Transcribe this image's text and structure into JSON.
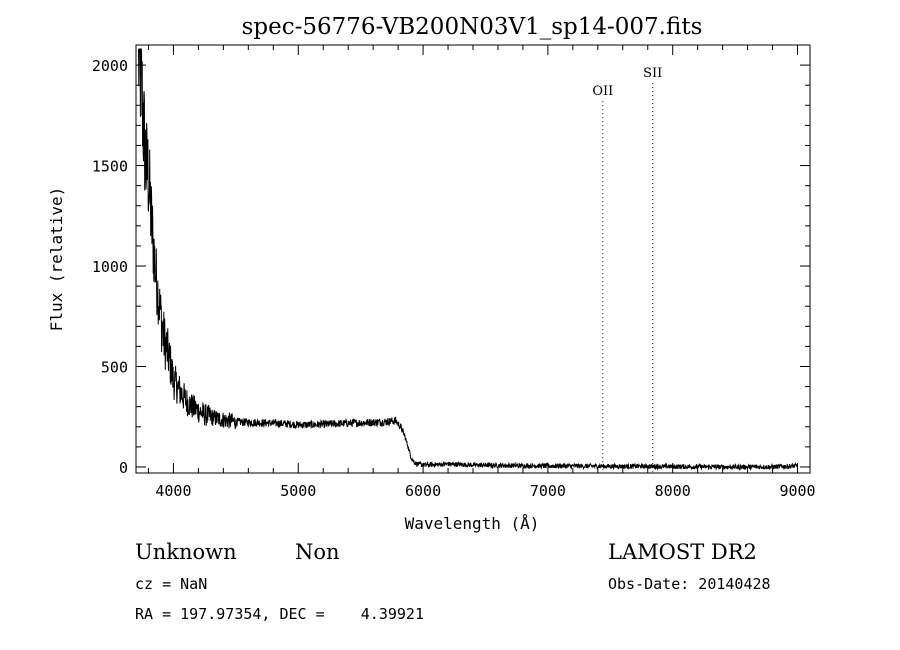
{
  "chart_data": {
    "type": "line",
    "title": "spec-56776-VB200N03V1_sp14-007.fits",
    "xlabel": "Wavelength (Å)",
    "ylabel": "Flux (relative)",
    "xlim": [
      3700,
      9100
    ],
    "ylim": [
      -30,
      2100
    ],
    "x_ticks": [
      4000,
      5000,
      6000,
      7000,
      8000,
      9000
    ],
    "y_ticks": [
      0,
      500,
      1000,
      1500,
      2000
    ],
    "grid": false,
    "series": [
      {
        "x": [
          3720,
          3740,
          3760,
          3780,
          3800,
          3820,
          3840,
          3860,
          3880,
          3900,
          3920,
          3950,
          3980,
          4000,
          4050,
          4100,
          4150,
          4200,
          4250,
          4300,
          4350,
          4400,
          4450,
          4500,
          4600,
          4700,
          4800,
          4900,
          5000,
          5100,
          5200,
          5300,
          5400,
          5500,
          5600,
          5700,
          5780,
          5820,
          5850,
          5880,
          5900,
          5920,
          5950,
          6000,
          6100,
          6200,
          6400,
          6600,
          6800,
          7000,
          7200,
          7400,
          7600,
          7800,
          8000,
          8200,
          8400,
          8600,
          8800,
          9000
        ],
        "y": [
          2050,
          1950,
          1700,
          1500,
          1450,
          1250,
          1100,
          950,
          850,
          750,
          650,
          580,
          500,
          430,
          380,
          330,
          300,
          280,
          260,
          250,
          240,
          235,
          230,
          225,
          222,
          220,
          218,
          215,
          210,
          210,
          212,
          215,
          218,
          220,
          222,
          225,
          230,
          200,
          160,
          100,
          55,
          30,
          15,
          10,
          12,
          15,
          10,
          8,
          6,
          5,
          5,
          4,
          3,
          3,
          2,
          1,
          0,
          0,
          1,
          5
        ]
      }
    ],
    "annotations": [
      {
        "label": "OII",
        "x": 7440,
        "y": 1850
      },
      {
        "label": "SII",
        "x": 7840,
        "y": 1940
      }
    ]
  },
  "info": {
    "class": "Unknown",
    "subclass": "Non",
    "survey": "LAMOST DR2",
    "cz": "cz = NaN",
    "obs_date": "Obs-Date: 20140428",
    "coords": "RA = 197.97354, DEC =    4.39921"
  }
}
